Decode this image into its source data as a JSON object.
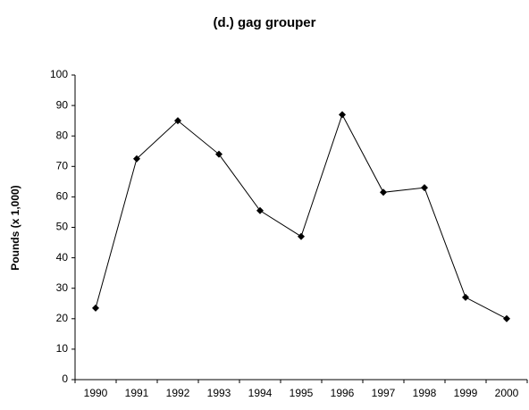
{
  "chart_data": {
    "type": "line",
    "title": "(d.) gag grouper",
    "y_label": "Pounds (x 1,000)",
    "categories": [
      "1990",
      "1991",
      "1992",
      "1993",
      "1994",
      "1995",
      "1996",
      "1997",
      "1998",
      "1999",
      "2000"
    ],
    "series": [
      {
        "name": "gag grouper",
        "color": "#000000",
        "values": [
          23.5,
          72.5,
          85,
          74,
          55.5,
          47,
          87,
          61.5,
          63,
          27,
          20
        ]
      }
    ],
    "ylim": [
      0,
      100
    ],
    "yticks": [
      0,
      10,
      20,
      30,
      40,
      50,
      60,
      70,
      80,
      90,
      100
    ],
    "grid": false,
    "legend": false
  }
}
